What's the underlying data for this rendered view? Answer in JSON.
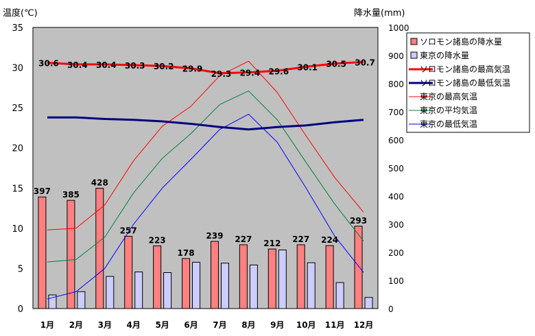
{
  "chart_data": {
    "type": "bar",
    "categories": [
      "1月",
      "2月",
      "3月",
      "4月",
      "5月",
      "6月",
      "7月",
      "8月",
      "9月",
      "10月",
      "11月",
      "12月"
    ],
    "left_axis_label": "温度(℃)",
    "right_axis_label": "降水量(mm)",
    "left_ylim": [
      0,
      35
    ],
    "right_ylim": [
      0,
      1000
    ],
    "left_ticks": [
      0,
      5,
      10,
      15,
      20,
      25,
      30,
      35
    ],
    "right_ticks": [
      0,
      100,
      200,
      300,
      400,
      500,
      600,
      700,
      800,
      900,
      1000
    ],
    "grid": false,
    "legend_position": "top-right",
    "bar_series": [
      {
        "name": "ソロモン諸島の降水量",
        "axis": "right",
        "color": "#ff8080",
        "values": [
          397,
          385,
          428,
          257,
          223,
          178,
          239,
          227,
          212,
          227,
          224,
          293
        ],
        "labels": [
          "397",
          "385",
          "428",
          "257",
          "223",
          "178",
          "239",
          "227",
          "212",
          "227",
          "224",
          "293"
        ]
      },
      {
        "name": "東京の降水量",
        "axis": "right",
        "color": "#ccccff",
        "values": [
          48.6,
          60.2,
          114.5,
          130.3,
          128.0,
          164.9,
          161.5,
          155.1,
          208.5,
          163.1,
          92.5,
          39.6
        ]
      }
    ],
    "line_series": [
      {
        "name": "ソロモン諸島の最高気温",
        "axis": "left",
        "color": "#ff0000",
        "width": 3,
        "values": [
          30.6,
          30.4,
          30.4,
          30.3,
          30.2,
          29.9,
          29.3,
          29.4,
          29.6,
          30.1,
          30.5,
          30.7
        ],
        "labels": [
          "30.6",
          "30.4",
          "30.4",
          "30.3",
          "30.2",
          "29.9",
          "29.3",
          "29.4",
          "29.6",
          "30.1",
          "30.5",
          "30.7"
        ]
      },
      {
        "name": "ソロモン諸島の最低気温",
        "axis": "left",
        "color": "#000080",
        "width": 3,
        "values": [
          23.8,
          23.8,
          23.6,
          23.5,
          23.3,
          23.0,
          22.6,
          22.3,
          22.6,
          22.8,
          23.2,
          23.5
        ]
      },
      {
        "name": "東京の最高気温",
        "axis": "left",
        "color": "#ff0000",
        "width": 1,
        "values": [
          9.8,
          10.0,
          12.9,
          18.4,
          22.7,
          25.2,
          29.0,
          30.8,
          26.9,
          21.5,
          16.3,
          12.0
        ]
      },
      {
        "name": "東京の平均気温",
        "axis": "left",
        "color": "#008040",
        "width": 1,
        "values": [
          5.8,
          6.1,
          8.9,
          14.4,
          18.7,
          21.8,
          25.4,
          27.1,
          23.5,
          18.2,
          13.0,
          8.4
        ]
      },
      {
        "name": "東京の最低気温",
        "axis": "left",
        "color": "#0000ff",
        "width": 1,
        "values": [
          1.2,
          2.1,
          5.0,
          10.5,
          15.0,
          18.6,
          22.3,
          24.2,
          20.7,
          15.0,
          9.0,
          4.5
        ]
      }
    ]
  }
}
